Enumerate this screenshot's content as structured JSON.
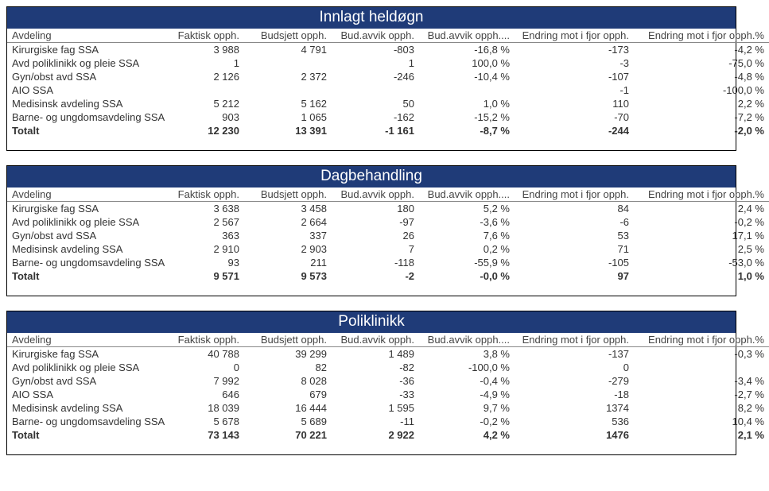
{
  "colors": {
    "header_bg": "#1f3b78",
    "header_text": "#ffffff",
    "border": "#000000",
    "row_border": "#888888",
    "text": "#333333"
  },
  "fonts": {
    "family": "Segoe UI",
    "title_size_pt": 15,
    "body_size_pt": 10
  },
  "column_headers": {
    "dept": "Avdeling",
    "faktisk": "Faktisk opph.",
    "budsjett": "Budsjett opph.",
    "avvik": "Bud.avvik opph.",
    "avvik_pct": "Bud.avvik opph....",
    "endring": "Endring mot i fjor opph.",
    "endring_pct": "Endring mot i fjor opph.%"
  },
  "sections": [
    {
      "title": "Innlagt heldøgn",
      "rows": [
        {
          "dept": "Kirurgiske fag SSA",
          "faktisk": "3 988",
          "budsjett": "4 791",
          "avvik": "-803",
          "avvik_pct": "-16,8 %",
          "endring": "-173",
          "endring_pct": "-4,2 %"
        },
        {
          "dept": "Avd poliklinikk og pleie SSA",
          "faktisk": "1",
          "budsjett": "",
          "avvik": "1",
          "avvik_pct": "100,0 %",
          "endring": "-3",
          "endring_pct": "-75,0 %"
        },
        {
          "dept": "Gyn/obst avd SSA",
          "faktisk": "2 126",
          "budsjett": "2 372",
          "avvik": "-246",
          "avvik_pct": "-10,4 %",
          "endring": "-107",
          "endring_pct": "-4,8 %"
        },
        {
          "dept": "AIO SSA",
          "faktisk": "",
          "budsjett": "",
          "avvik": "",
          "avvik_pct": "",
          "endring": "-1",
          "endring_pct": "-100,0 %"
        },
        {
          "dept": "Medisinsk avdeling SSA",
          "faktisk": "5 212",
          "budsjett": "5 162",
          "avvik": "50",
          "avvik_pct": "1,0 %",
          "endring": "110",
          "endring_pct": "2,2 %"
        },
        {
          "dept": "Barne- og ungdomsavdeling SSA",
          "faktisk": "903",
          "budsjett": "1 065",
          "avvik": "-162",
          "avvik_pct": "-15,2 %",
          "endring": "-70",
          "endring_pct": "-7,2 %"
        }
      ],
      "total": {
        "dept": "Totalt",
        "faktisk": "12 230",
        "budsjett": "13 391",
        "avvik": "-1 161",
        "avvik_pct": "-8,7 %",
        "endring": "-244",
        "endring_pct": "-2,0 %"
      }
    },
    {
      "title": "Dagbehandling",
      "rows": [
        {
          "dept": "Kirurgiske fag SSA",
          "faktisk": "3 638",
          "budsjett": "3 458",
          "avvik": "180",
          "avvik_pct": "5,2 %",
          "endring": "84",
          "endring_pct": "2,4 %"
        },
        {
          "dept": "Avd poliklinikk og pleie SSA",
          "faktisk": "2 567",
          "budsjett": "2 664",
          "avvik": "-97",
          "avvik_pct": "-3,6 %",
          "endring": "-6",
          "endring_pct": "-0,2 %"
        },
        {
          "dept": "Gyn/obst avd SSA",
          "faktisk": "363",
          "budsjett": "337",
          "avvik": "26",
          "avvik_pct": "7,6 %",
          "endring": "53",
          "endring_pct": "17,1 %"
        },
        {
          "dept": "Medisinsk avdeling SSA",
          "faktisk": "2 910",
          "budsjett": "2 903",
          "avvik": "7",
          "avvik_pct": "0,2 %",
          "endring": "71",
          "endring_pct": "2,5 %"
        },
        {
          "dept": "Barne- og ungdomsavdeling SSA",
          "faktisk": "93",
          "budsjett": "211",
          "avvik": "-118",
          "avvik_pct": "-55,9 %",
          "endring": "-105",
          "endring_pct": "-53,0 %"
        }
      ],
      "total": {
        "dept": "Totalt",
        "faktisk": "9 571",
        "budsjett": "9 573",
        "avvik": "-2",
        "avvik_pct": "-0,0 %",
        "endring": "97",
        "endring_pct": "1,0 %"
      }
    },
    {
      "title": "Poliklinikk",
      "rows": [
        {
          "dept": "Kirurgiske fag SSA",
          "faktisk": "40 788",
          "budsjett": "39 299",
          "avvik": "1 489",
          "avvik_pct": "3,8 %",
          "endring": "-137",
          "endring_pct": "-0,3 %"
        },
        {
          "dept": "Avd poliklinikk og pleie SSA",
          "faktisk": "0",
          "budsjett": "82",
          "avvik": "-82",
          "avvik_pct": "-100,0 %",
          "endring": "0",
          "endring_pct": ""
        },
        {
          "dept": "Gyn/obst avd SSA",
          "faktisk": "7 992",
          "budsjett": "8 028",
          "avvik": "-36",
          "avvik_pct": "-0,4 %",
          "endring": "-279",
          "endring_pct": "-3,4 %"
        },
        {
          "dept": "AIO SSA",
          "faktisk": "646",
          "budsjett": "679",
          "avvik": "-33",
          "avvik_pct": "-4,9 %",
          "endring": "-18",
          "endring_pct": "-2,7 %"
        },
        {
          "dept": "Medisinsk avdeling SSA",
          "faktisk": "18 039",
          "budsjett": "16 444",
          "avvik": "1 595",
          "avvik_pct": "9,7 %",
          "endring": "1374",
          "endring_pct": "8,2 %"
        },
        {
          "dept": "Barne- og ungdomsavdeling SSA",
          "faktisk": "5 678",
          "budsjett": "5 689",
          "avvik": "-11",
          "avvik_pct": "-0,2 %",
          "endring": "536",
          "endring_pct": "10,4 %"
        }
      ],
      "total": {
        "dept": "Totalt",
        "faktisk": "73 143",
        "budsjett": "70 221",
        "avvik": "2 922",
        "avvik_pct": "4,2 %",
        "endring": "1476",
        "endring_pct": "2,1 %"
      }
    }
  ]
}
